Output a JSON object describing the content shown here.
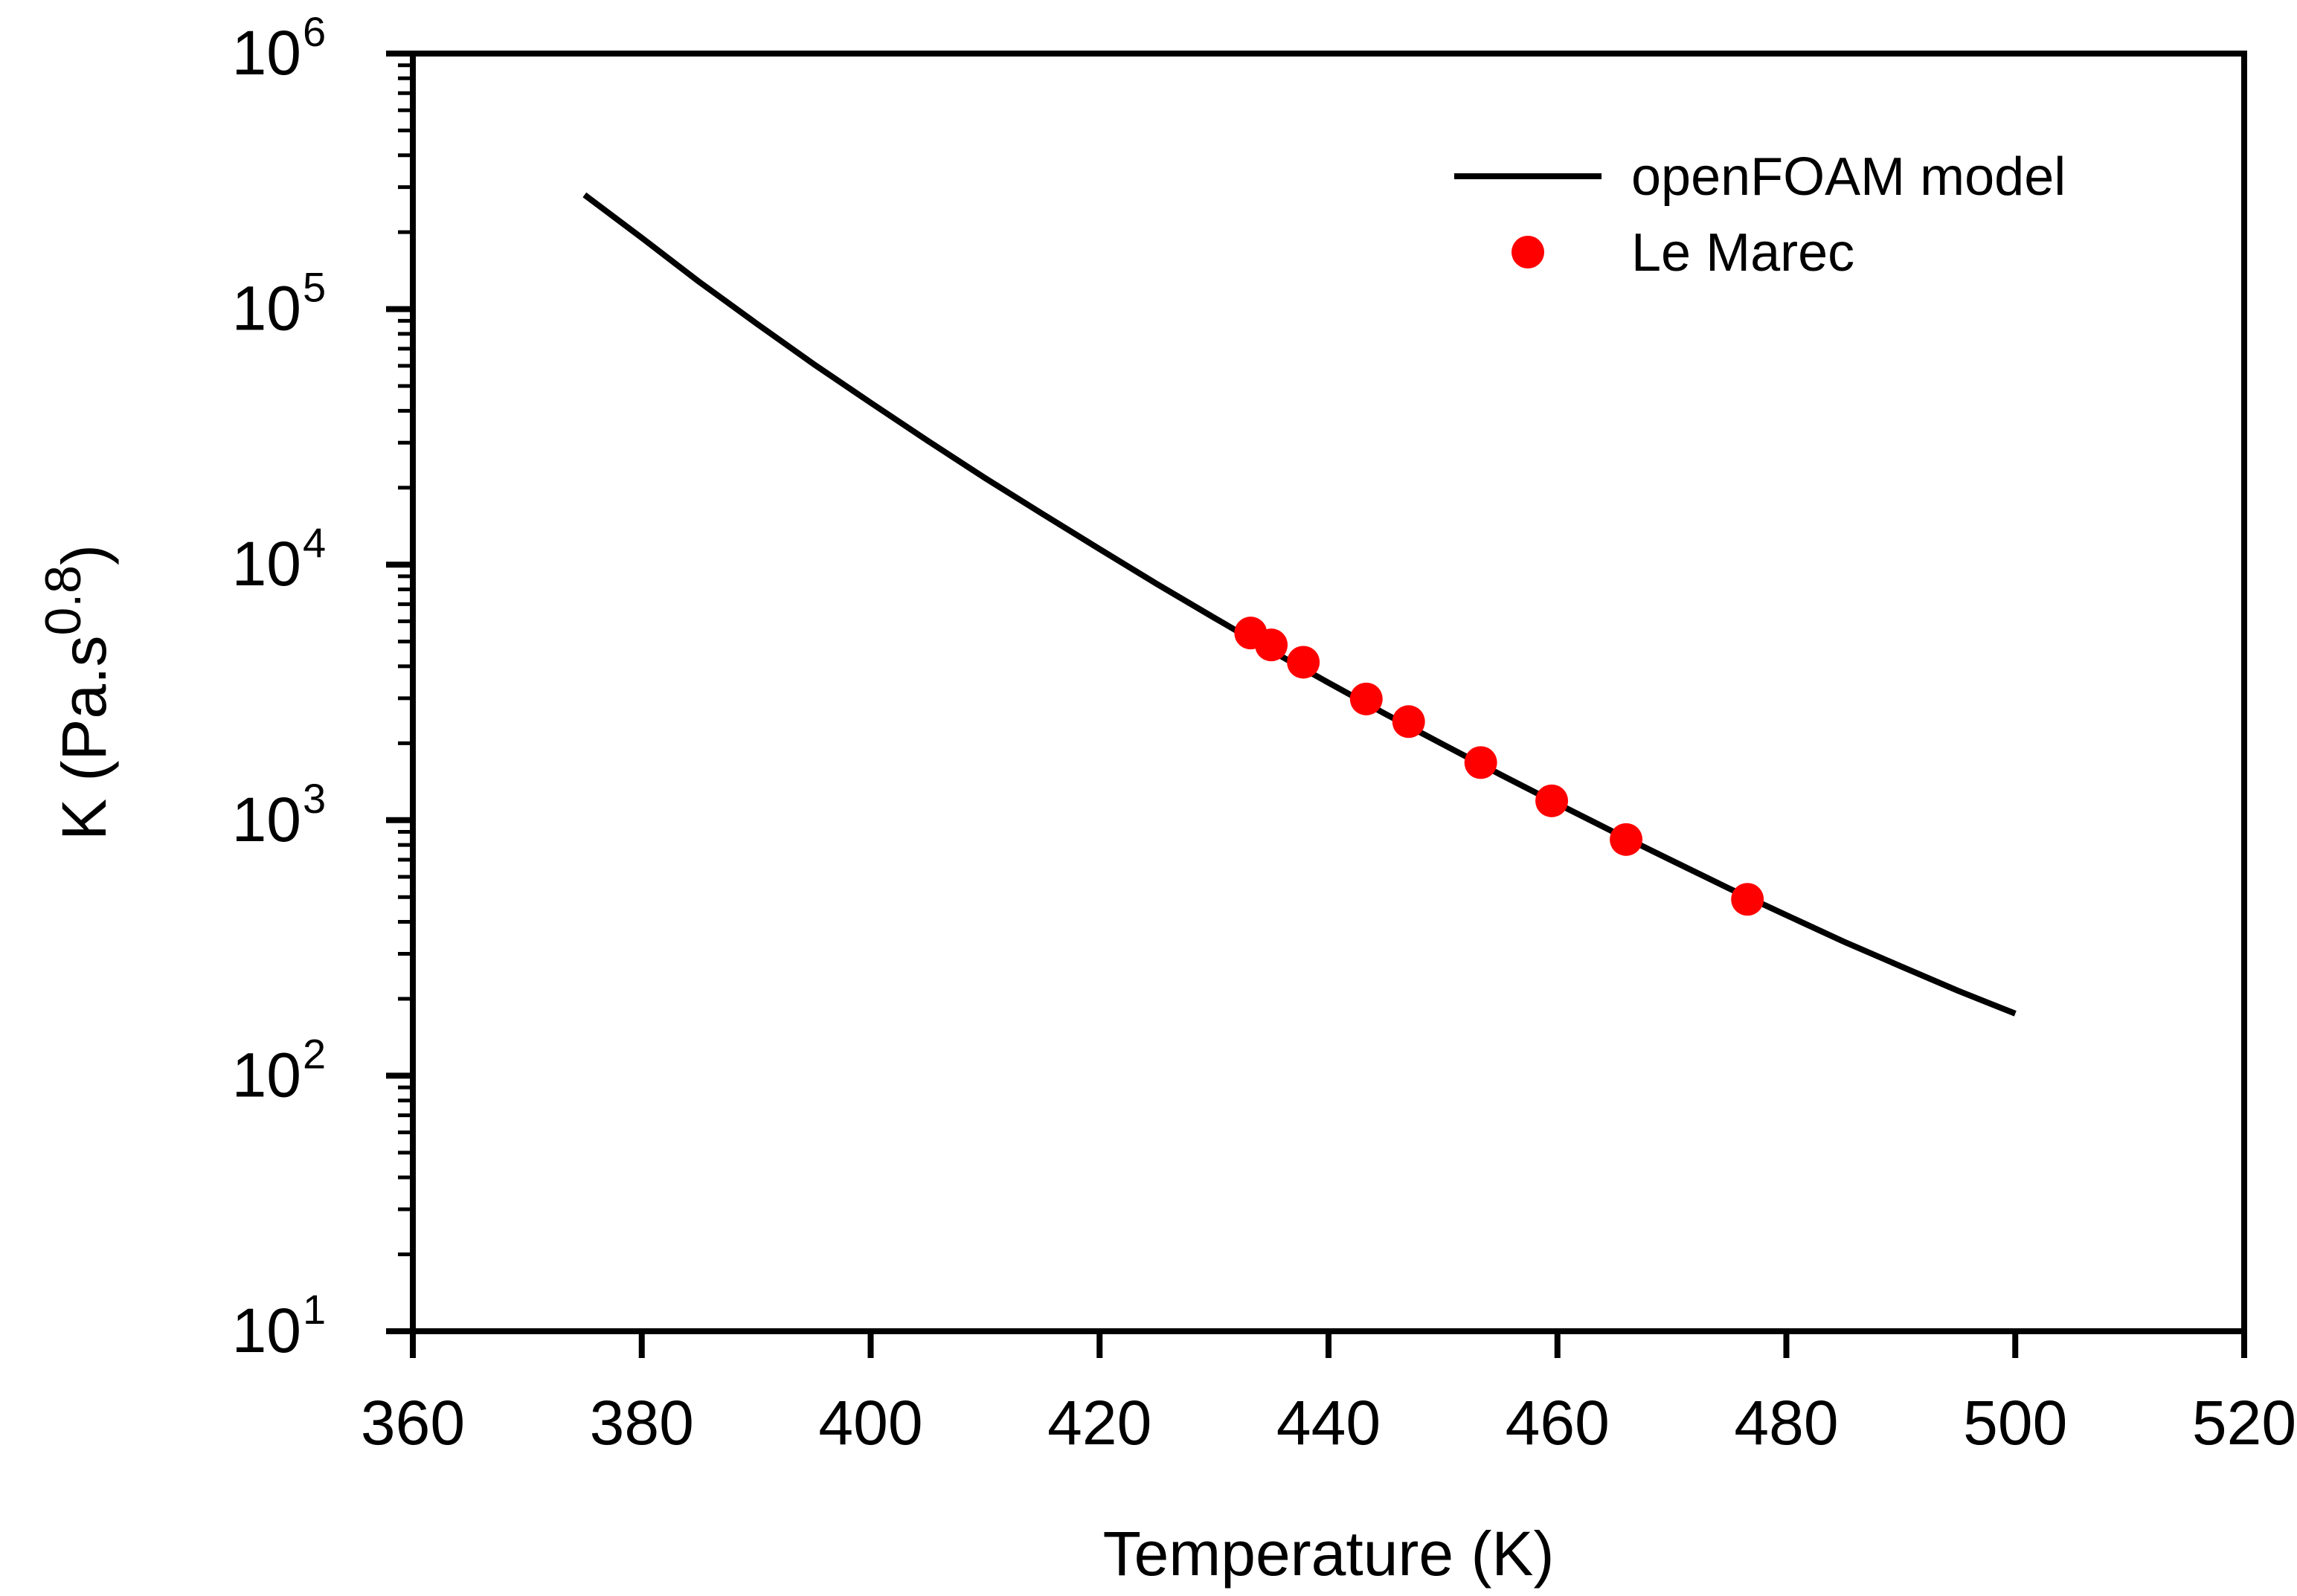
{
  "chart_data": {
    "type": "line",
    "title": "",
    "xlabel": "Temperature (K)",
    "ylabel": {
      "base": "K (Pa.s",
      "superscript": "0.8",
      "close": ")"
    },
    "xlim": [
      360,
      520
    ],
    "ylim": [
      10,
      1000000
    ],
    "yscale": "log",
    "x_ticks": [
      360,
      380,
      400,
      420,
      440,
      460,
      480,
      500,
      520
    ],
    "y_ticks": [
      {
        "base": "10",
        "exp": "1",
        "value": 10
      },
      {
        "base": "10",
        "exp": "2",
        "value": 100
      },
      {
        "base": "10",
        "exp": "3",
        "value": 1000
      },
      {
        "base": "10",
        "exp": "4",
        "value": 10000
      },
      {
        "base": "10",
        "exp": "5",
        "value": 100000
      },
      {
        "base": "10",
        "exp": "6",
        "value": 1000000
      }
    ],
    "grid": false,
    "legend_position": "top-right",
    "series": [
      {
        "name": "openFOAM model",
        "kind": "line",
        "color": "#000000",
        "x": [
          375,
          380,
          385,
          390,
          395,
          400,
          405,
          410,
          415,
          420,
          425,
          430,
          435,
          440,
          445,
          450,
          455,
          460,
          465,
          470,
          475,
          480,
          485,
          490,
          495,
          500
        ],
        "y": [
          280000,
          190000,
          128000,
          88000,
          61000,
          43000,
          30500,
          21800,
          15800,
          11500,
          8400,
          6200,
          4600,
          3450,
          2600,
          1980,
          1510,
          1160,
          895,
          695,
          540,
          425,
          335,
          268,
          215,
          175
        ]
      },
      {
        "name": "Le Marec",
        "kind": "scatter",
        "color": "#ff0000",
        "x": [
          433.2,
          435.0,
          437.8,
          443.3,
          447.0,
          453.3,
          459.5,
          466.0,
          476.6
        ],
        "y": [
          5400,
          4850,
          4150,
          2980,
          2430,
          1680,
          1190,
          840,
          490
        ]
      }
    ]
  }
}
